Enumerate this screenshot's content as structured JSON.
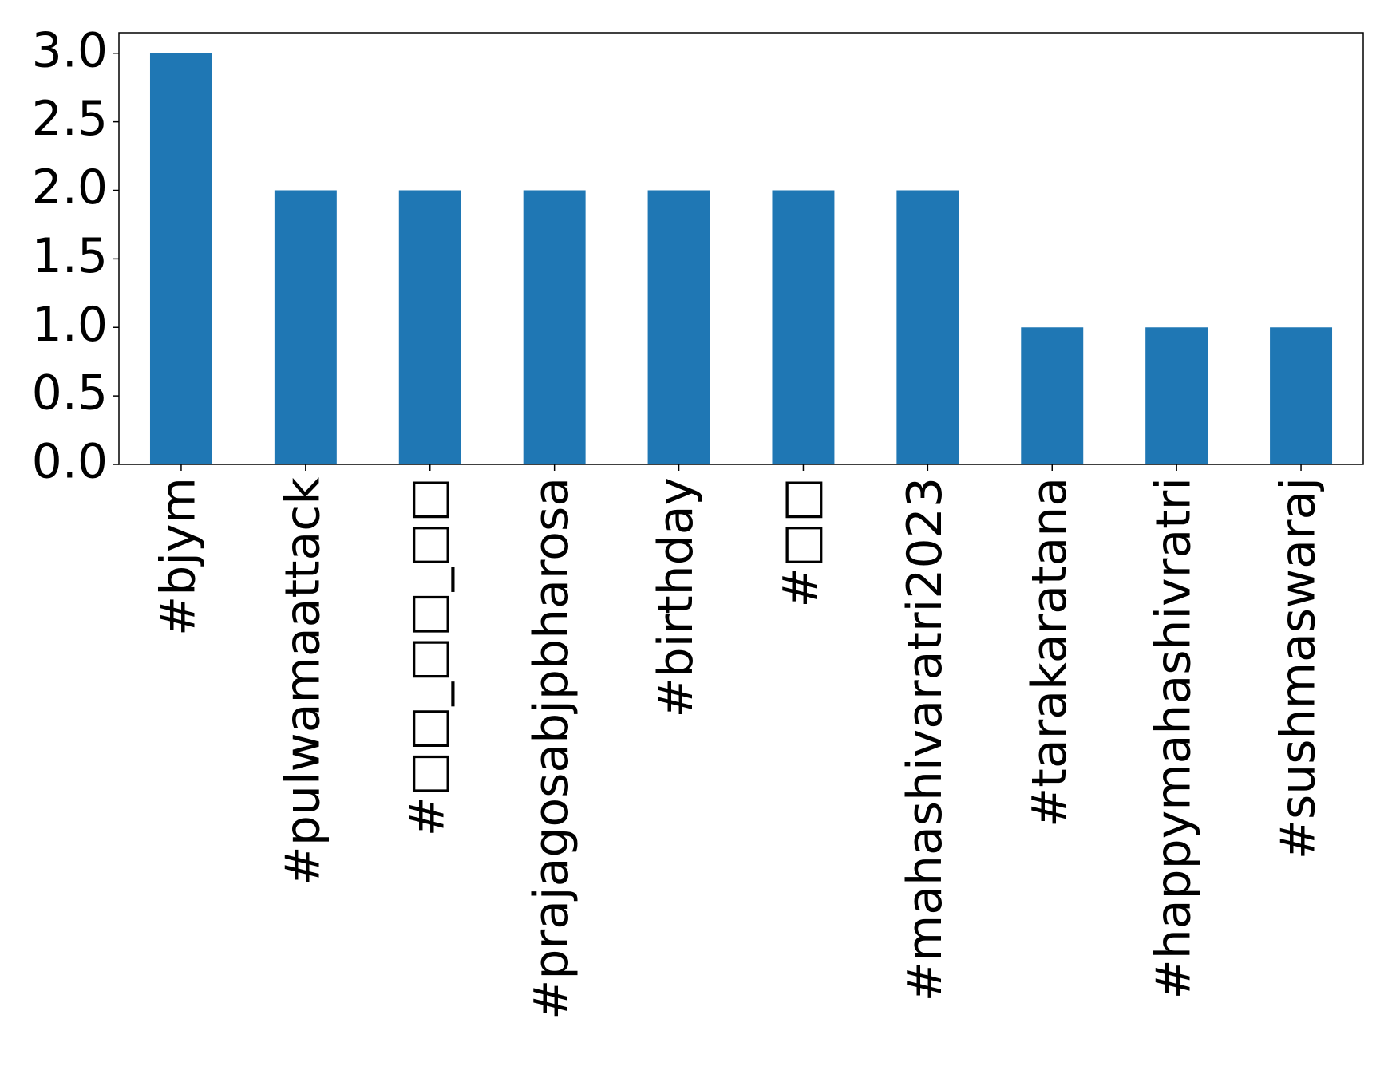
{
  "chart_data": {
    "type": "bar",
    "categories": [
      "#bjym",
      "#pulwamaattack",
      "#□□_□□_□□",
      "#prajagosabjpbharosa",
      "#birthday",
      "#□□",
      "#mahashivaratri2023",
      "#tarakaratana",
      "#happymahashivratri",
      "#sushmaswaraj"
    ],
    "values": [
      3,
      2,
      2,
      2,
      2,
      2,
      2,
      1,
      1,
      1
    ],
    "color": "#1f77b4",
    "ylim": [
      0,
      3.15
    ],
    "yticks": [
      {
        "value": 0,
        "label": "0.0"
      },
      {
        "value": 0.5,
        "label": "0.5"
      },
      {
        "value": 1,
        "label": "1.0"
      },
      {
        "value": 1.5,
        "label": "1.5"
      },
      {
        "value": 2,
        "label": "2.0"
      },
      {
        "value": 2.5,
        "label": "2.5"
      },
      {
        "value": 3,
        "label": "3.0"
      }
    ],
    "grid": false
  }
}
